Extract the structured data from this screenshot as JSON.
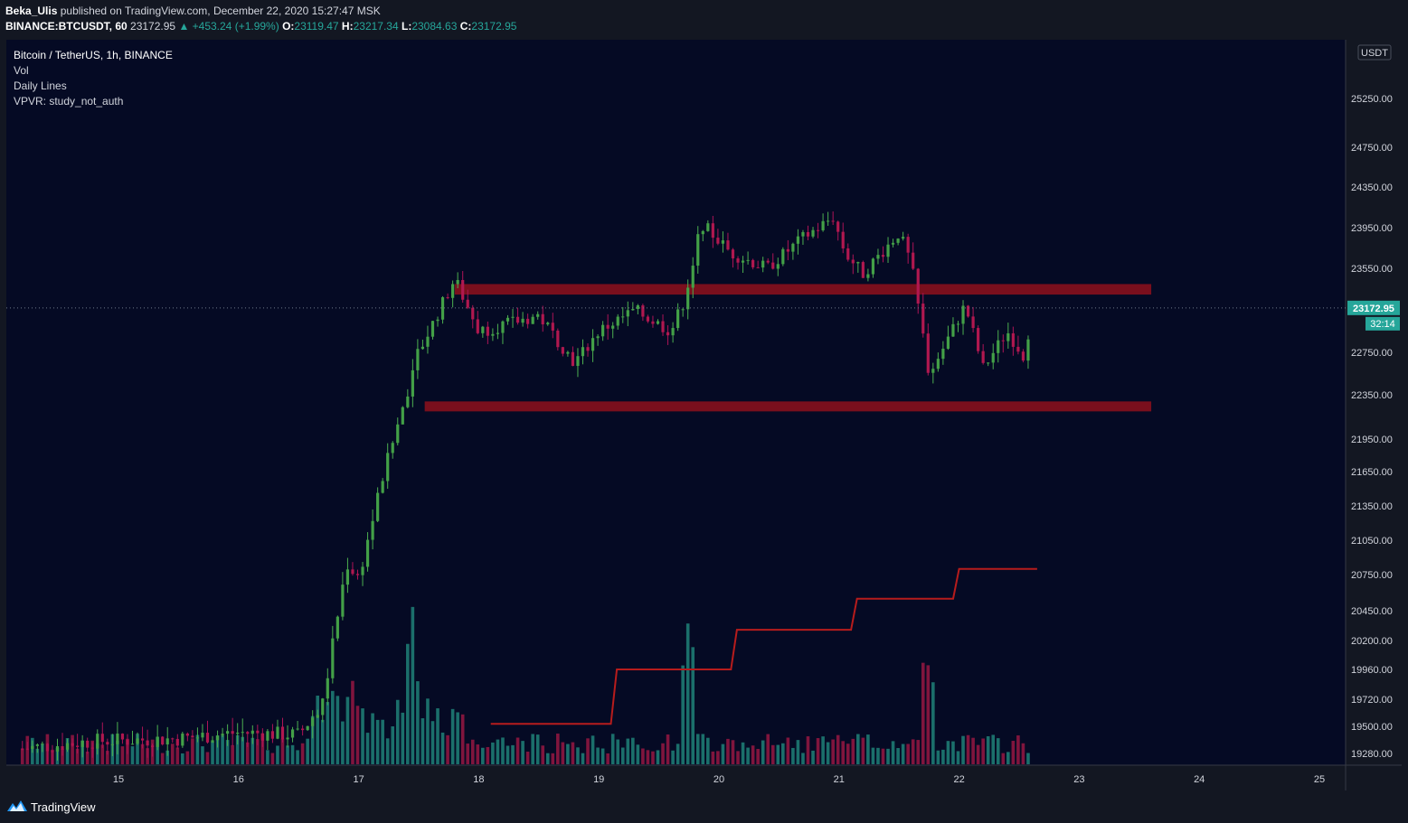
{
  "header": {
    "publisher": "Beka_Ulis",
    "published_text": "published on TradingView.com, December 22, 2020 15:27:47 MSK",
    "symbol": "BINANCE:BTCUSDT, 60",
    "last": "23172.95",
    "change": "▲ +453.24 (+1.99%)",
    "o_label": "O:",
    "o_value": "23119.47",
    "h_label": "H:",
    "h_value": "23217.34",
    "l_label": "L:",
    "l_value": "23084.63",
    "c_label": "C:",
    "c_value": "23172.95"
  },
  "legend": {
    "title": "Bitcoin / TetherUS, 1h, BINANCE",
    "vol": "Vol",
    "daily_lines": "Daily Lines",
    "vpvr": "VPVR: study_not_auth"
  },
  "footer": {
    "brand": "TradingView"
  },
  "chart_data": {
    "type": "candlestick",
    "currency": "USDT",
    "price_ticks": [
      25250.0,
      24750.0,
      24350.0,
      23950.0,
      23550.0,
      22750.0,
      22350.0,
      21950.0,
      21650.0,
      21350.0,
      21050.0,
      20750.0,
      20450.0,
      20200.0,
      19960.0,
      19720.0,
      19500.0,
      19280.0
    ],
    "x_ticks": [
      "15",
      "16",
      "17",
      "18",
      "19",
      "20",
      "21",
      "22",
      "23",
      "24",
      "25"
    ],
    "last_price": "23172.95",
    "countdown": "32:14",
    "zones": [
      {
        "from_day": 17.8,
        "to_day": 23.6,
        "low": 23300,
        "high": 23400,
        "color": "#7a0f1d"
      },
      {
        "from_day": 17.55,
        "to_day": 23.6,
        "low": 22200,
        "high": 22290,
        "color": "#7a0f1d"
      }
    ],
    "daily_line": [
      [
        18.1,
        19520
      ],
      [
        19.1,
        19520
      ],
      [
        19.15,
        19960
      ],
      [
        20.1,
        19960
      ],
      [
        20.15,
        20290
      ],
      [
        21.1,
        20290
      ],
      [
        21.15,
        20550
      ],
      [
        21.95,
        20550
      ],
      [
        22.0,
        20800
      ],
      [
        22.65,
        20800
      ]
    ],
    "ohlc_keypoints": [
      [
        14.2,
        19320
      ],
      [
        14.8,
        19380
      ],
      [
        15.5,
        19400
      ],
      [
        16.0,
        19450
      ],
      [
        16.5,
        19430
      ],
      [
        16.7,
        19680
      ],
      [
        16.9,
        20850
      ],
      [
        17.0,
        20720
      ],
      [
        17.2,
        21600
      ],
      [
        17.5,
        22750
      ],
      [
        17.8,
        23450
      ],
      [
        18.0,
        22950
      ],
      [
        18.5,
        23100
      ],
      [
        18.8,
        22650
      ],
      [
        19.0,
        22950
      ],
      [
        19.3,
        23150
      ],
      [
        19.6,
        22950
      ],
      [
        19.75,
        23350
      ],
      [
        19.85,
        24000
      ],
      [
        20.1,
        23700
      ],
      [
        20.4,
        23550
      ],
      [
        20.7,
        23850
      ],
      [
        20.95,
        24050
      ],
      [
        21.05,
        23700
      ],
      [
        21.2,
        23500
      ],
      [
        21.5,
        23900
      ],
      [
        21.6,
        23600
      ],
      [
        21.75,
        22550
      ],
      [
        21.85,
        22750
      ],
      [
        22.05,
        23200
      ],
      [
        22.2,
        22600
      ],
      [
        22.4,
        22950
      ],
      [
        22.55,
        22700
      ],
      [
        22.6,
        23172.95
      ]
    ]
  }
}
